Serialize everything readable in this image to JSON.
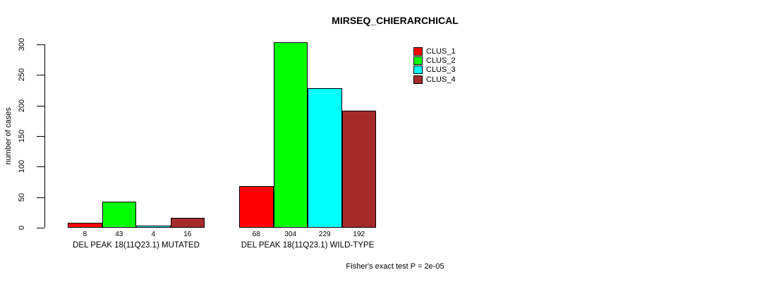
{
  "chart_data": {
    "type": "bar",
    "title": "MIRSEQ_CHIERARCHICAL",
    "ylabel": "number of cases",
    "ylim": [
      0,
      300
    ],
    "yticks": [
      0,
      50,
      100,
      150,
      200,
      250,
      300
    ],
    "grid": false,
    "legend_position": "top-right",
    "categories": [
      "DEL PEAK 18(11Q23.1) MUTATED",
      "DEL PEAK 18(11Q23.1) WILD-TYPE"
    ],
    "series": [
      {
        "name": "CLUS_1",
        "color": "#FF0000",
        "values": [
          8,
          68
        ]
      },
      {
        "name": "CLUS_2",
        "color": "#00FF00",
        "values": [
          43,
          304
        ]
      },
      {
        "name": "CLUS_3",
        "color": "#00FFFF",
        "values": [
          4,
          229
        ]
      },
      {
        "name": "CLUS_4",
        "color": "#A52A2A",
        "values": [
          16,
          192
        ]
      }
    ],
    "show_bar_values": true,
    "bar_value_labels": [
      [
        "8",
        "43",
        "4",
        "16"
      ],
      [
        "68",
        "304",
        "229",
        "192"
      ]
    ],
    "footnote": "Fisher's exact test P = 2e-05"
  },
  "colors": {
    "background": "#FFFFFF",
    "axis": "#000000",
    "text": "#000000"
  }
}
